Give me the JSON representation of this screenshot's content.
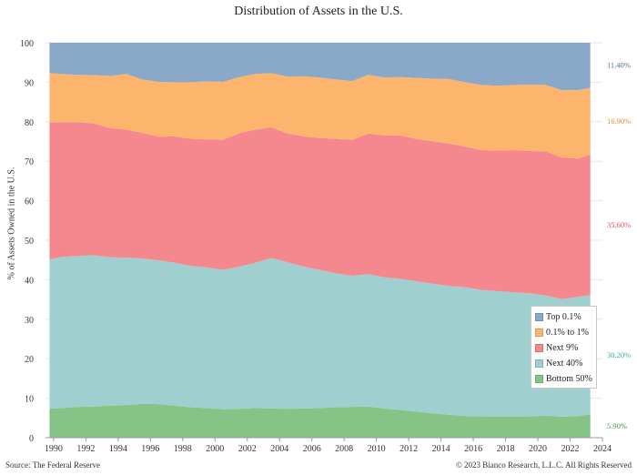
{
  "chart_data": {
    "type": "area",
    "stacked": true,
    "title": "Distribution of Assets in the U.S.",
    "ylabel": "% of Assets Owned in the U.S.",
    "xlabel": "",
    "xlim": [
      1989.5,
      2024
    ],
    "ylim": [
      0,
      100
    ],
    "x_ticks": [
      "1990",
      "1992",
      "1994",
      "1996",
      "1998",
      "2000",
      "2002",
      "2004",
      "2006",
      "2008",
      "2010",
      "2012",
      "2014",
      "2016",
      "2018",
      "2020",
      "2022",
      "2024"
    ],
    "y_ticks": [
      "0",
      "10",
      "20",
      "30",
      "40",
      "50",
      "60",
      "70",
      "80",
      "90",
      "100"
    ],
    "grid": true,
    "legend_position": "bottom-right",
    "x": [
      1989.75,
      1990.5,
      1991.5,
      1992.5,
      1993.5,
      1994.5,
      1995.5,
      1996.5,
      1997.5,
      1998.5,
      1999.5,
      2000.5,
      2001.5,
      2002.5,
      2003.5,
      2004.5,
      2005.5,
      2006.5,
      2007.5,
      2008.5,
      2009.5,
      2010.5,
      2011.5,
      2012.5,
      2013.5,
      2014.5,
      2015.5,
      2016.5,
      2017.5,
      2018.5,
      2019.5,
      2020.5,
      2021.5,
      2022.5,
      2023.25
    ],
    "series": [
      {
        "name": "Bottom 50%",
        "color": "#86c386",
        "values": [
          7.3,
          7.5,
          7.8,
          7.9,
          8.1,
          8.3,
          8.6,
          8.5,
          8.1,
          7.7,
          7.5,
          7.2,
          7.3,
          7.5,
          7.4,
          7.3,
          7.4,
          7.5,
          7.7,
          7.8,
          7.9,
          7.4,
          7.0,
          6.6,
          6.2,
          5.8,
          5.5,
          5.4,
          5.4,
          5.4,
          5.4,
          5.6,
          5.3,
          5.5,
          5.9
        ]
      },
      {
        "name": "Next 40%",
        "color": "#9fd0cf",
        "values": [
          37.8,
          38.3,
          38.2,
          38.3,
          37.6,
          37.3,
          36.8,
          36.4,
          36.2,
          35.8,
          35.6,
          35.3,
          36.0,
          36.8,
          38.1,
          37.1,
          35.9,
          35.0,
          33.9,
          33.2,
          33.5,
          33.2,
          33.2,
          33.0,
          32.8,
          32.6,
          32.6,
          32.0,
          31.7,
          31.4,
          31.2,
          30.4,
          29.8,
          30.2,
          30.2
        ]
      },
      {
        "name": "Next 9%",
        "color": "#f5888f",
        "values": [
          34.7,
          34.1,
          33.9,
          33.4,
          32.7,
          32.4,
          31.8,
          31.3,
          32.0,
          32.2,
          32.4,
          32.9,
          33.8,
          33.7,
          33.1,
          32.6,
          33.0,
          33.4,
          34.1,
          34.4,
          35.6,
          36.0,
          36.3,
          36.0,
          36.1,
          36.1,
          35.6,
          35.4,
          35.6,
          36.0,
          36.0,
          36.5,
          35.8,
          35.0,
          35.6
        ]
      },
      {
        "name": "0.1% to 1%",
        "color": "#fdb56e",
        "values": [
          12.5,
          12.2,
          12.0,
          12.2,
          13.2,
          14.1,
          13.5,
          13.9,
          13.7,
          14.3,
          14.7,
          14.7,
          14.2,
          14.1,
          13.7,
          14.4,
          15.2,
          15.3,
          15.0,
          14.9,
          14.9,
          14.6,
          14.8,
          15.5,
          15.8,
          16.3,
          16.3,
          16.5,
          16.4,
          16.5,
          16.8,
          16.8,
          17.1,
          17.3,
          16.9
        ]
      },
      {
        "name": "Top 0.1%",
        "color": "#8aa9c9",
        "values": [
          7.7,
          7.9,
          8.1,
          8.2,
          8.4,
          7.9,
          9.3,
          9.9,
          10.0,
          10.0,
          9.8,
          9.9,
          8.7,
          7.9,
          7.7,
          8.6,
          8.5,
          8.8,
          9.3,
          9.7,
          8.1,
          8.8,
          8.7,
          8.9,
          9.1,
          9.2,
          10.0,
          10.7,
          10.9,
          10.7,
          10.6,
          10.7,
          12.0,
          12.0,
          11.4
        ]
      }
    ],
    "end_labels": [
      {
        "text": "11.40%",
        "color": "#4a6f9a"
      },
      {
        "text": "16.90%",
        "color": "#e0892a"
      },
      {
        "text": "35.60%",
        "color": "#e24a55"
      },
      {
        "text": "30.20%",
        "color": "#3aa8a5"
      },
      {
        "text": "5.90%",
        "color": "#3f9a3f"
      }
    ],
    "source": "Source: The Federal Reserve",
    "copyright": "© 2023 Bianco Research, L.L.C. All Rights Reserved"
  }
}
